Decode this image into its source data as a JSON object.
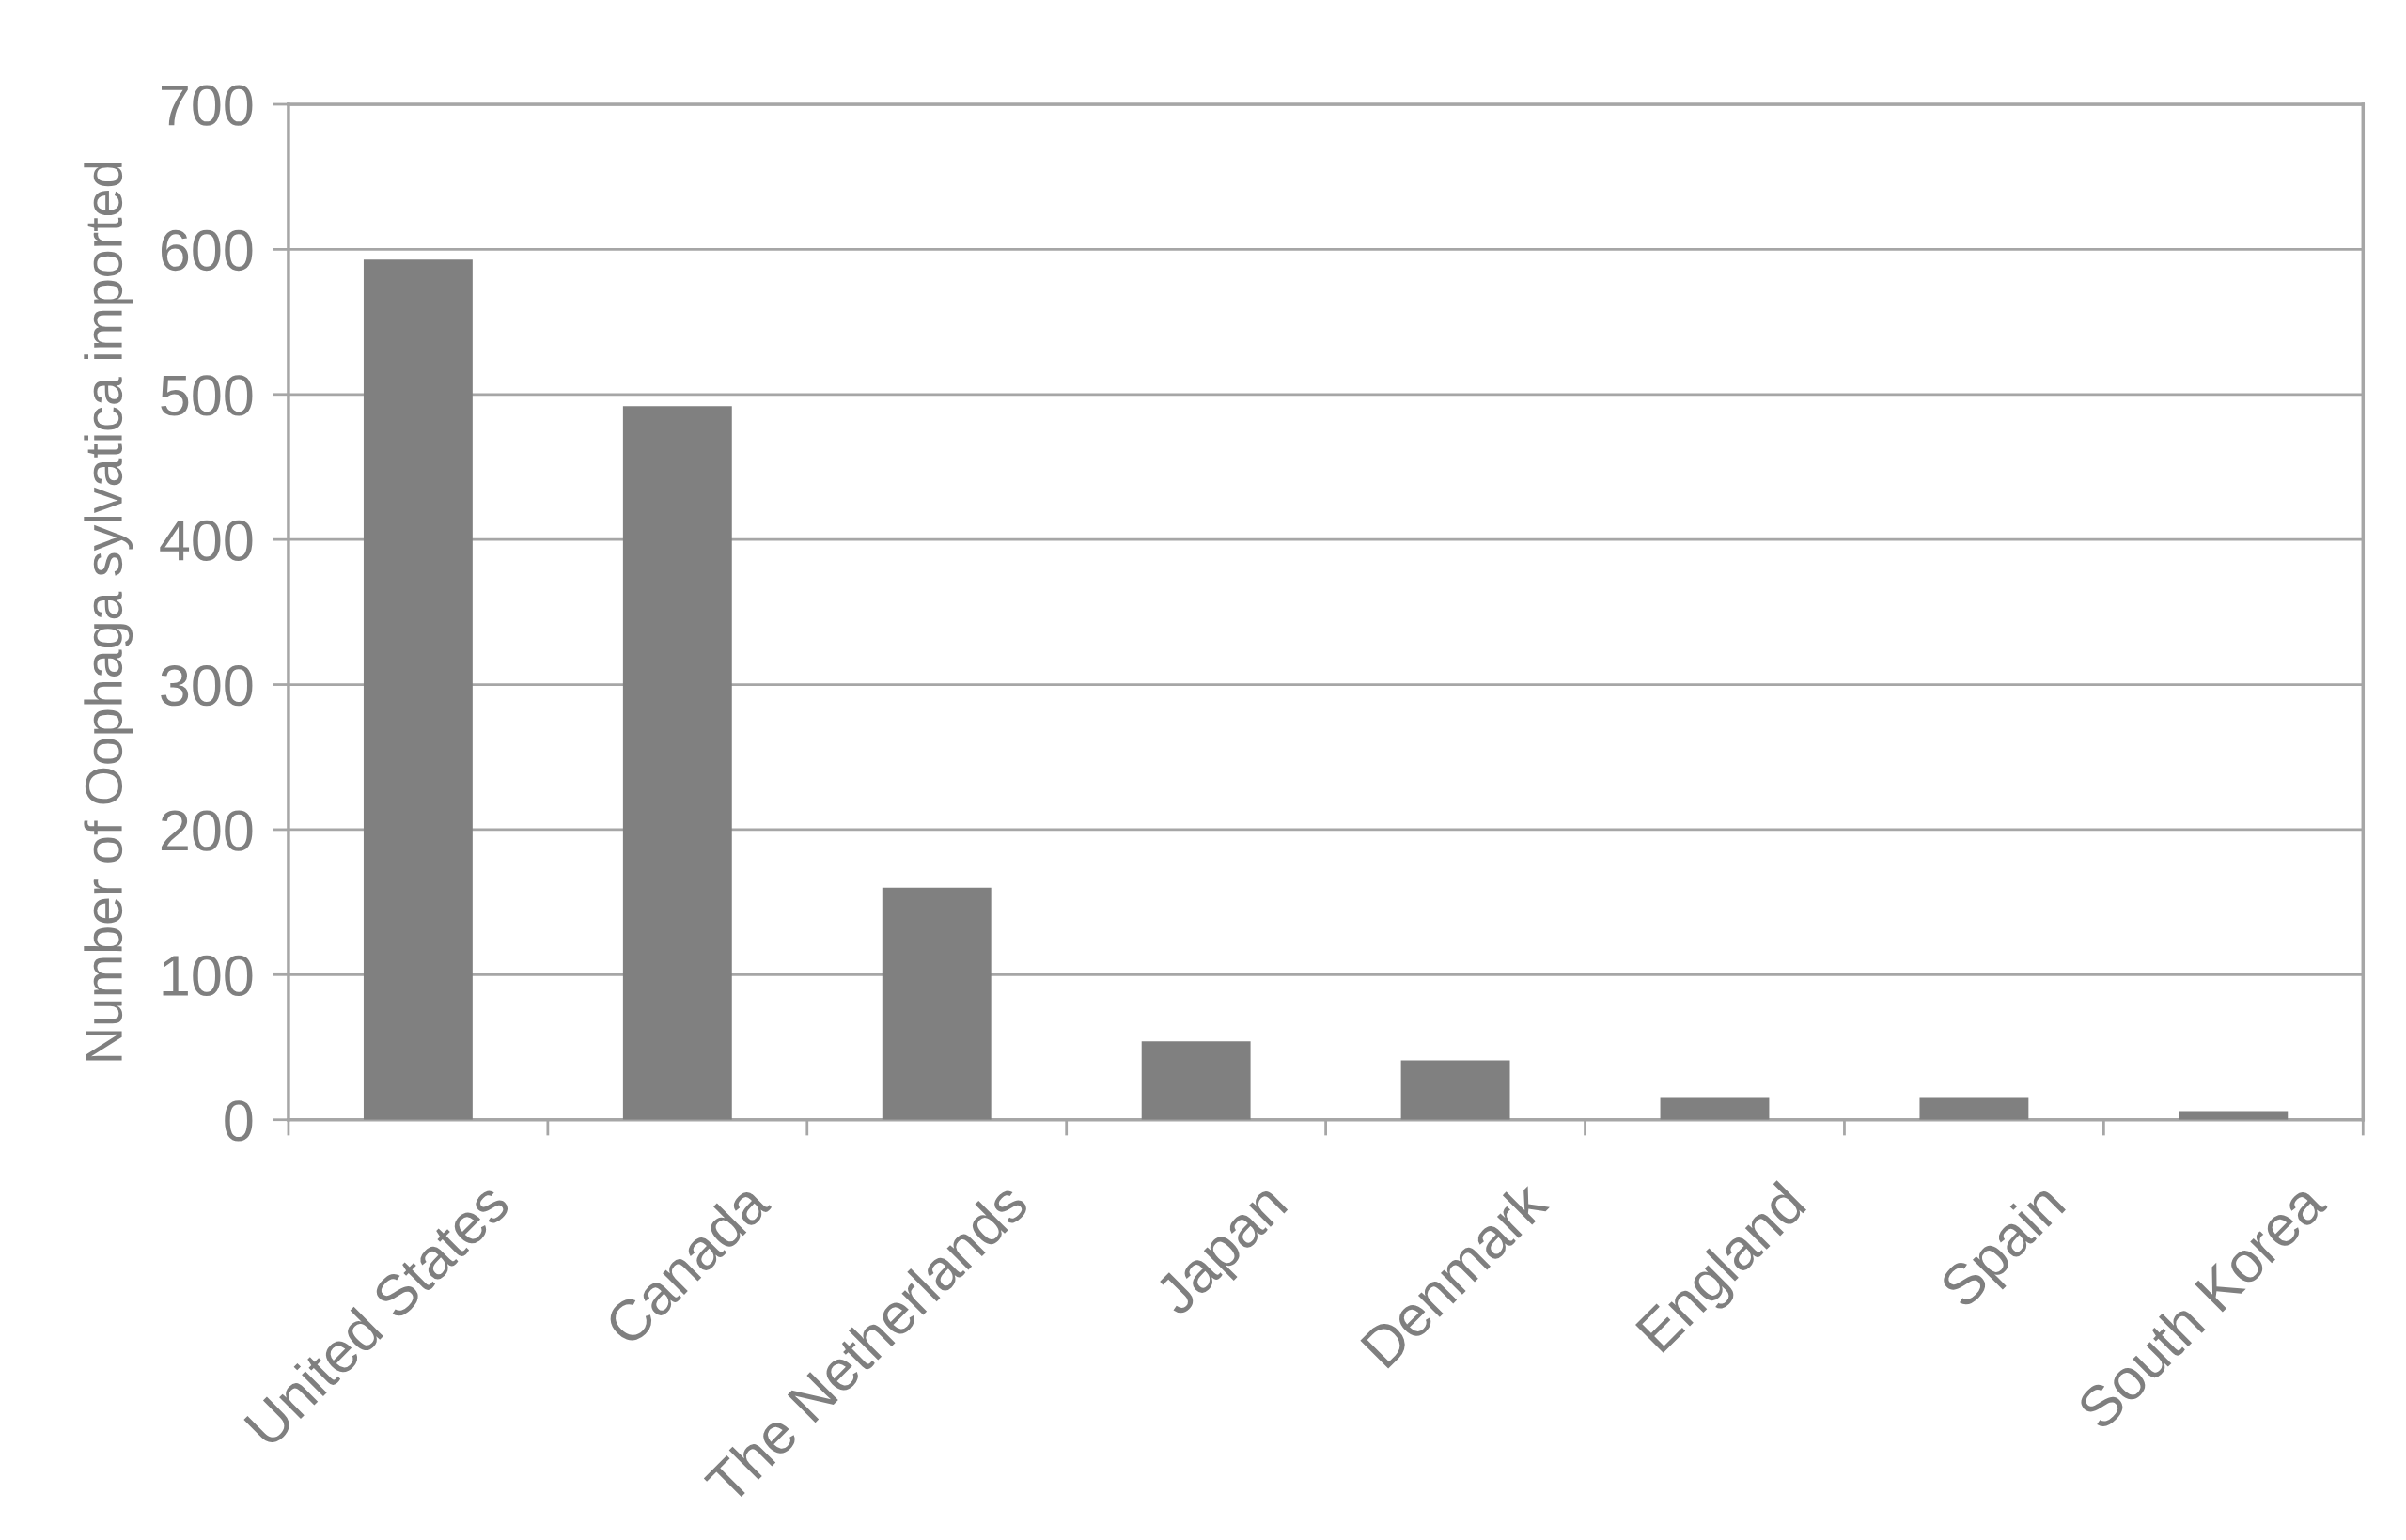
{
  "chart_data": {
    "type": "bar",
    "ylabel": "Number of Oophaga sylvatica imported",
    "categories": [
      "United States",
      "Canada",
      "The Netherlands",
      "Japan",
      "Denmark",
      "England",
      "Spain",
      "South Korea"
    ],
    "values": [
      593,
      492,
      160,
      54,
      41,
      15,
      15,
      6
    ],
    "color": "#808080",
    "ylim": [
      0,
      700
    ],
    "yticks": [
      0,
      100,
      200,
      300,
      400,
      500,
      600,
      700
    ],
    "grid": "y",
    "legend": false
  }
}
